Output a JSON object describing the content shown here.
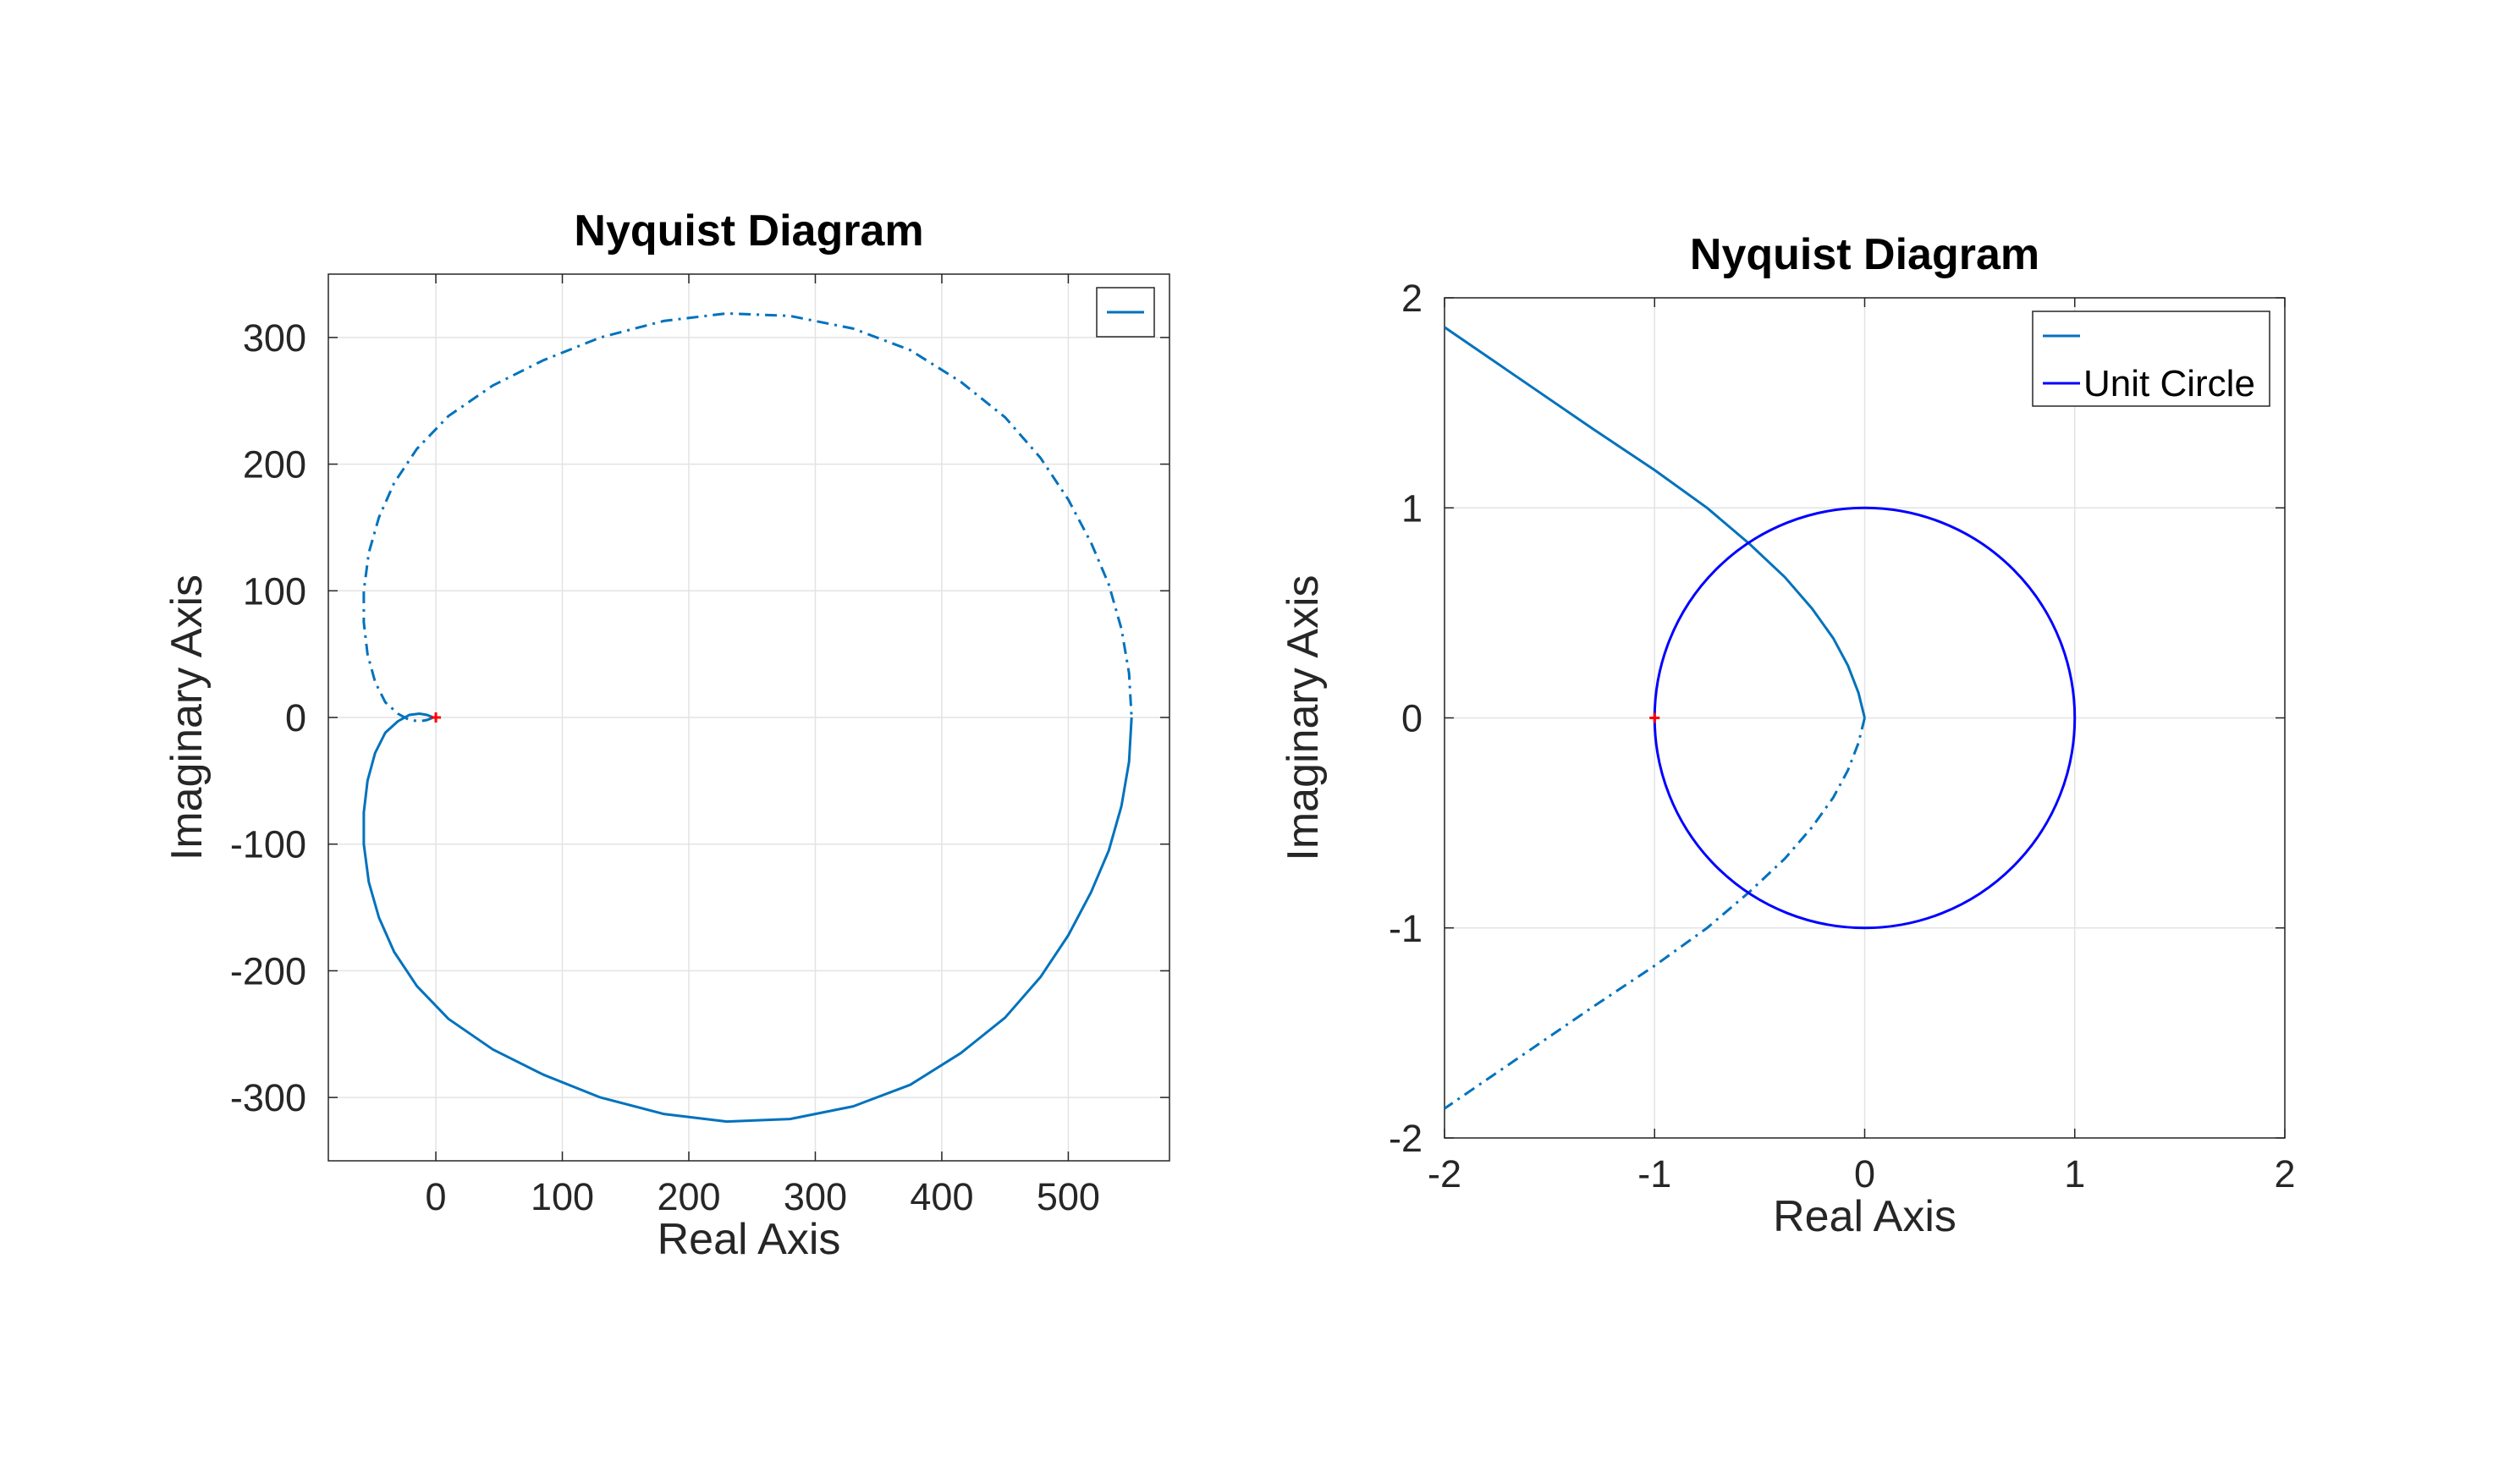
{
  "chart_data": [
    {
      "type": "line",
      "title": "Nyquist Diagram",
      "xlabel": "Real Axis",
      "ylabel": "Imaginary Axis",
      "xlim": [
        -85,
        580
      ],
      "ylim": [
        -350,
        350
      ],
      "xticks": [
        0,
        100,
        200,
        300,
        400,
        500
      ],
      "yticks": [
        -300,
        -200,
        -100,
        0,
        100,
        200,
        300
      ],
      "xtick_labels": [
        "0",
        "100",
        "200",
        "300",
        "400",
        "500"
      ],
      "ytick_labels": [
        "-300",
        "-200",
        "-100",
        "0",
        "100",
        "200",
        "300"
      ],
      "grid": true,
      "legend": {
        "placement": "top-right",
        "entries": [
          ""
        ]
      },
      "series": [
        {
          "style": "solid",
          "color": "#0072BD",
          "x": [
            -2,
            -7,
            -13,
            -21,
            -30,
            -40,
            -48,
            -54,
            -57,
            -57,
            -53,
            -45,
            -33,
            -15,
            10,
            45,
            85,
            130,
            180,
            230,
            280,
            330,
            375,
            415,
            450,
            478,
            500,
            518,
            532,
            542,
            548,
            550
          ],
          "y": [
            0,
            2,
            3,
            2,
            -3,
            -12,
            -28,
            -50,
            -75,
            -100,
            -130,
            -158,
            -185,
            -212,
            -238,
            -262,
            -282,
            -300,
            -313,
            -319,
            -317,
            -307,
            -290,
            -265,
            -237,
            -205,
            -172,
            -138,
            -105,
            -70,
            -35,
            0
          ]
        },
        {
          "style": "dashdot",
          "color": "#0072BD",
          "x": [
            -2,
            -7,
            -13,
            -21,
            -30,
            -40,
            -48,
            -54,
            -57,
            -57,
            -53,
            -45,
            -33,
            -15,
            10,
            45,
            85,
            130,
            180,
            230,
            280,
            330,
            375,
            415,
            450,
            478,
            500,
            518,
            532,
            542,
            548,
            550
          ],
          "y": [
            0,
            -2,
            -3,
            -2,
            3,
            12,
            28,
            50,
            75,
            100,
            130,
            158,
            185,
            212,
            238,
            262,
            282,
            300,
            313,
            319,
            317,
            307,
            290,
            265,
            237,
            205,
            172,
            138,
            105,
            70,
            35,
            0
          ]
        }
      ],
      "markers": [
        {
          "x": 0,
          "y": 0,
          "symbol": "+",
          "color": "#FF0000"
        }
      ]
    },
    {
      "type": "line",
      "title": "Nyquist Diagram",
      "xlabel": "Real Axis",
      "ylabel": "Imaginary Axis",
      "xlim": [
        -2,
        2
      ],
      "ylim": [
        -2,
        2
      ],
      "xticks": [
        -2,
        -1,
        0,
        1,
        2
      ],
      "yticks": [
        -2,
        -1,
        0,
        1,
        2
      ],
      "xtick_labels": [
        "-2",
        "-1",
        "0",
        "1",
        "2"
      ],
      "ytick_labels": [
        "-2",
        "-1",
        "0",
        "1",
        "2"
      ],
      "grid": true,
      "legend": {
        "placement": "top-right",
        "entries": [
          "",
          "Unit Circle"
        ]
      },
      "series": [
        {
          "style": "solid",
          "color": "#0072BD",
          "x": [
            0,
            -0.03,
            -0.08,
            -0.15,
            -0.25,
            -0.38,
            -0.55,
            -0.75,
            -1.0,
            -1.3,
            -1.65,
            -2.0
          ],
          "y": [
            0,
            0.12,
            0.25,
            0.38,
            0.52,
            0.67,
            0.83,
            1.0,
            1.18,
            1.38,
            1.62,
            1.86
          ]
        },
        {
          "style": "dashdot",
          "color": "#0072BD",
          "x": [
            0,
            -0.03,
            -0.08,
            -0.15,
            -0.25,
            -0.38,
            -0.55,
            -0.75,
            -1.0,
            -1.3,
            -1.65,
            -2.0
          ],
          "y": [
            0,
            -0.12,
            -0.25,
            -0.38,
            -0.52,
            -0.67,
            -0.83,
            -1.0,
            -1.18,
            -1.38,
            -1.62,
            -1.86
          ]
        },
        {
          "name": "Unit Circle",
          "style": "solid",
          "color": "#0000FF",
          "shape": "circle",
          "center": [
            0,
            0
          ],
          "radius": 1
        }
      ],
      "markers": [
        {
          "x": -1,
          "y": 0,
          "symbol": "+",
          "color": "#FF0000"
        }
      ]
    }
  ]
}
